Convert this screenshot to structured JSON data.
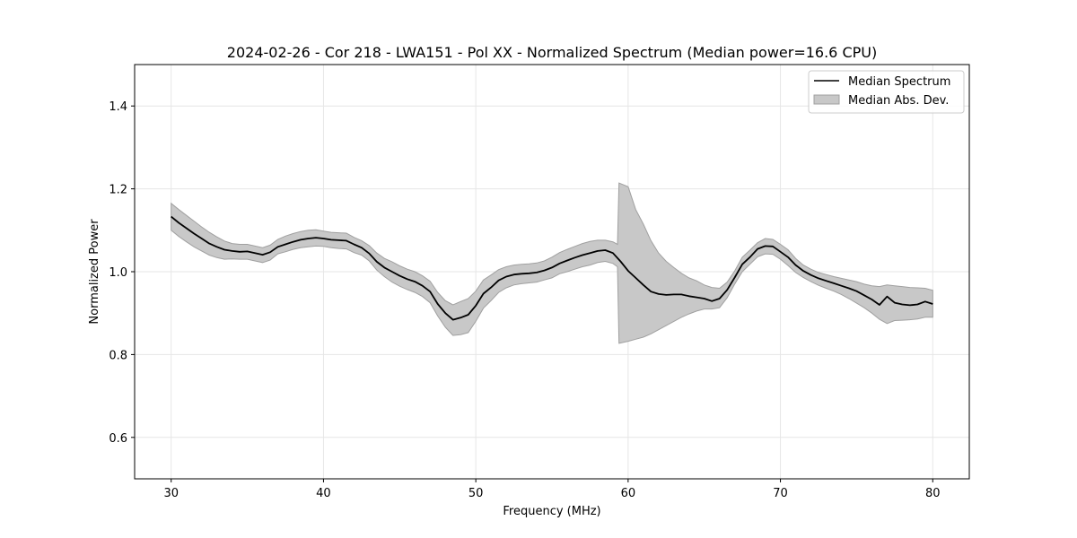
{
  "chart_data": {
    "type": "area",
    "title": "2024-02-26 - Cor 218 - LWA151 - Pol XX - Normalized Spectrum (Median power=16.6 CPU)",
    "xlabel": "Frequency (MHz)",
    "ylabel": "Normalized Power",
    "xlim": [
      27.6,
      82.4
    ],
    "ylim": [
      0.5,
      1.5
    ],
    "xticks": [
      30,
      40,
      50,
      60,
      70,
      80
    ],
    "yticks": [
      0.6,
      0.8,
      1.0,
      1.2,
      1.4
    ],
    "grid": true,
    "legend_position": "upper right",
    "colors": {
      "line": "#000000",
      "band": "#c8c8c8",
      "band_edge": "#a0a0a0"
    },
    "series": [
      {
        "name": "Median Spectrum",
        "kind": "line",
        "points": [
          [
            30.0,
            1.133
          ],
          [
            30.5,
            1.118
          ],
          [
            31.0,
            1.105
          ],
          [
            31.5,
            1.092
          ],
          [
            32.0,
            1.08
          ],
          [
            32.5,
            1.068
          ],
          [
            33.0,
            1.06
          ],
          [
            33.5,
            1.053
          ],
          [
            34.0,
            1.05
          ],
          [
            34.5,
            1.048
          ],
          [
            35.0,
            1.049
          ],
          [
            35.5,
            1.045
          ],
          [
            36.0,
            1.041
          ],
          [
            36.5,
            1.047
          ],
          [
            37.0,
            1.06
          ],
          [
            37.5,
            1.066
          ],
          [
            38.0,
            1.072
          ],
          [
            38.5,
            1.077
          ],
          [
            39.0,
            1.08
          ],
          [
            39.5,
            1.082
          ],
          [
            40.0,
            1.08
          ],
          [
            40.5,
            1.077
          ],
          [
            41.0,
            1.076
          ],
          [
            41.5,
            1.075
          ],
          [
            42.0,
            1.066
          ],
          [
            42.5,
            1.058
          ],
          [
            43.0,
            1.044
          ],
          [
            43.5,
            1.024
          ],
          [
            44.0,
            1.01
          ],
          [
            44.5,
            1.0
          ],
          [
            45.0,
            0.99
          ],
          [
            45.5,
            0.982
          ],
          [
            46.0,
            0.976
          ],
          [
            46.5,
            0.966
          ],
          [
            47.0,
            0.952
          ],
          [
            47.5,
            0.922
          ],
          [
            48.0,
            0.9
          ],
          [
            48.5,
            0.884
          ],
          [
            49.0,
            0.889
          ],
          [
            49.5,
            0.896
          ],
          [
            50.0,
            0.918
          ],
          [
            50.5,
            0.947
          ],
          [
            51.0,
            0.962
          ],
          [
            51.5,
            0.979
          ],
          [
            52.0,
            0.988
          ],
          [
            52.5,
            0.993
          ],
          [
            53.0,
            0.995
          ],
          [
            53.5,
            0.996
          ],
          [
            54.0,
            0.998
          ],
          [
            54.5,
            1.003
          ],
          [
            55.0,
            1.01
          ],
          [
            55.5,
            1.02
          ],
          [
            56.0,
            1.027
          ],
          [
            56.5,
            1.034
          ],
          [
            57.0,
            1.04
          ],
          [
            57.5,
            1.045
          ],
          [
            58.0,
            1.05
          ],
          [
            58.5,
            1.052
          ],
          [
            59.0,
            1.045
          ],
          [
            59.5,
            1.025
          ],
          [
            60.0,
            1.002
          ],
          [
            60.5,
            0.985
          ],
          [
            61.0,
            0.968
          ],
          [
            61.5,
            0.952
          ],
          [
            62.0,
            0.946
          ],
          [
            62.5,
            0.944
          ],
          [
            63.0,
            0.945
          ],
          [
            63.5,
            0.945
          ],
          [
            64.0,
            0.941
          ],
          [
            64.5,
            0.938
          ],
          [
            65.0,
            0.935
          ],
          [
            65.5,
            0.929
          ],
          [
            66.0,
            0.935
          ],
          [
            66.5,
            0.956
          ],
          [
            67.0,
            0.986
          ],
          [
            67.5,
            1.018
          ],
          [
            68.0,
            1.035
          ],
          [
            68.5,
            1.055
          ],
          [
            69.0,
            1.062
          ],
          [
            69.5,
            1.061
          ],
          [
            70.0,
            1.048
          ],
          [
            70.5,
            1.035
          ],
          [
            71.0,
            1.016
          ],
          [
            71.5,
            1.002
          ],
          [
            72.0,
            0.992
          ],
          [
            72.5,
            0.984
          ],
          [
            73.0,
            0.978
          ],
          [
            73.5,
            0.972
          ],
          [
            74.0,
            0.966
          ],
          [
            74.5,
            0.96
          ],
          [
            75.0,
            0.953
          ],
          [
            75.5,
            0.943
          ],
          [
            76.0,
            0.933
          ],
          [
            76.5,
            0.92
          ],
          [
            77.0,
            0.94
          ],
          [
            77.5,
            0.925
          ],
          [
            78.0,
            0.921
          ],
          [
            78.5,
            0.919
          ],
          [
            79.0,
            0.921
          ],
          [
            79.5,
            0.928
          ],
          [
            80.0,
            0.922
          ]
        ]
      },
      {
        "name": "Median Abs. Dev.",
        "kind": "band",
        "x": [
          30.0,
          30.5,
          31.0,
          31.5,
          32.0,
          32.5,
          33.0,
          33.5,
          34.0,
          34.5,
          35.0,
          35.5,
          36.0,
          36.5,
          37.0,
          37.5,
          38.0,
          38.5,
          39.0,
          39.5,
          40.0,
          40.5,
          41.0,
          41.5,
          42.0,
          42.5,
          43.0,
          43.5,
          44.0,
          44.5,
          45.0,
          45.5,
          46.0,
          46.5,
          47.0,
          47.5,
          48.0,
          48.5,
          49.0,
          49.5,
          50.0,
          50.5,
          51.0,
          51.5,
          52.0,
          52.5,
          53.0,
          53.5,
          54.0,
          54.5,
          55.0,
          55.5,
          56.0,
          56.5,
          57.0,
          57.5,
          58.0,
          58.5,
          59.0,
          59.3,
          59.4,
          60.0,
          60.5,
          61.0,
          61.5,
          62.0,
          62.5,
          63.0,
          63.5,
          64.0,
          64.5,
          65.0,
          65.5,
          66.0,
          66.5,
          67.0,
          67.5,
          68.0,
          68.5,
          69.0,
          69.5,
          70.0,
          70.5,
          71.0,
          71.5,
          72.0,
          72.5,
          73.0,
          73.5,
          74.0,
          74.5,
          75.0,
          75.5,
          76.0,
          76.5,
          77.0,
          77.5,
          78.0,
          78.5,
          79.0,
          79.5,
          80.0
        ],
        "upper": [
          1.165,
          1.15,
          1.136,
          1.122,
          1.108,
          1.095,
          1.084,
          1.074,
          1.068,
          1.066,
          1.066,
          1.062,
          1.058,
          1.064,
          1.078,
          1.086,
          1.092,
          1.097,
          1.1,
          1.101,
          1.098,
          1.095,
          1.094,
          1.093,
          1.083,
          1.075,
          1.063,
          1.045,
          1.032,
          1.024,
          1.014,
          1.006,
          1.0,
          0.99,
          0.977,
          0.95,
          0.93,
          0.92,
          0.928,
          0.935,
          0.953,
          0.98,
          0.992,
          1.005,
          1.012,
          1.016,
          1.018,
          1.019,
          1.021,
          1.026,
          1.035,
          1.046,
          1.054,
          1.061,
          1.068,
          1.073,
          1.076,
          1.076,
          1.072,
          1.066,
          1.214,
          1.205,
          1.15,
          1.115,
          1.075,
          1.045,
          1.025,
          1.01,
          0.996,
          0.985,
          0.978,
          0.968,
          0.962,
          0.96,
          0.975,
          1.002,
          1.035,
          1.052,
          1.07,
          1.08,
          1.078,
          1.066,
          1.053,
          1.032,
          1.016,
          1.006,
          0.998,
          0.993,
          0.988,
          0.984,
          0.98,
          0.976,
          0.97,
          0.966,
          0.964,
          0.968,
          0.966,
          0.964,
          0.962,
          0.961,
          0.96,
          0.955
        ],
        "lower": [
          1.1,
          1.085,
          1.072,
          1.06,
          1.05,
          1.04,
          1.034,
          1.03,
          1.031,
          1.03,
          1.03,
          1.026,
          1.022,
          1.028,
          1.043,
          1.048,
          1.054,
          1.058,
          1.06,
          1.062,
          1.061,
          1.058,
          1.056,
          1.055,
          1.046,
          1.04,
          1.026,
          1.004,
          0.988,
          0.975,
          0.965,
          0.957,
          0.95,
          0.94,
          0.925,
          0.893,
          0.866,
          0.846,
          0.848,
          0.853,
          0.88,
          0.912,
          0.93,
          0.95,
          0.961,
          0.968,
          0.971,
          0.973,
          0.975,
          0.98,
          0.985,
          0.995,
          1.0,
          1.006,
          1.012,
          1.016,
          1.022,
          1.025,
          1.02,
          1.012,
          0.827,
          0.832,
          0.837,
          0.842,
          0.85,
          0.86,
          0.87,
          0.88,
          0.89,
          0.898,
          0.905,
          0.91,
          0.91,
          0.913,
          0.937,
          0.97,
          1.0,
          1.018,
          1.036,
          1.043,
          1.042,
          1.03,
          1.015,
          0.998,
          0.986,
          0.976,
          0.967,
          0.96,
          0.953,
          0.945,
          0.935,
          0.924,
          0.913,
          0.9,
          0.885,
          0.875,
          0.882,
          0.883,
          0.884,
          0.886,
          0.89,
          0.89
        ]
      }
    ]
  }
}
